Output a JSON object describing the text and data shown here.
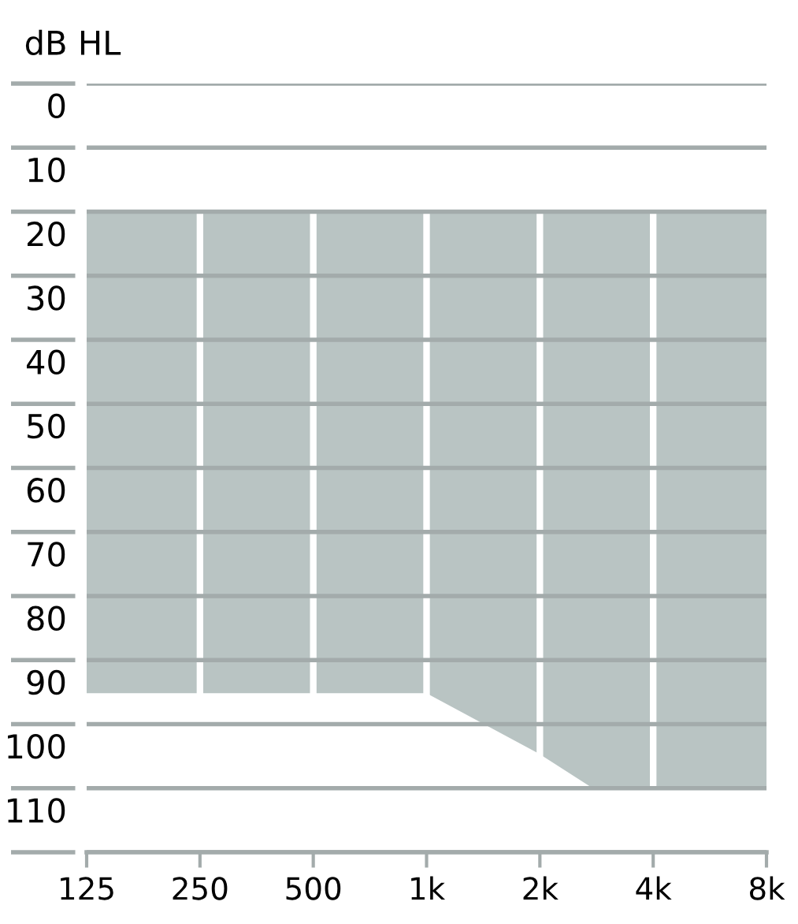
{
  "chart_data": {
    "type": "line",
    "ylabel": "dB HL",
    "series": [
      {
        "color": "#b9c4c3",
        "x": [
          125,
          250,
          500,
          1000,
          2000,
          2800,
          4000,
          8000
        ],
        "values": [
          95,
          95,
          95,
          95,
          104.5,
          110,
          110,
          110
        ],
        "lower": [
          20,
          20,
          20,
          20,
          20,
          20,
          20,
          20
        ],
        "upper": [
          95,
          95,
          95,
          95,
          104.5,
          110,
          110,
          110
        ]
      }
    ],
    "log": "x",
    "xlim": [
      125,
      8000
    ],
    "xticks": [
      125,
      250,
      500,
      {
        "value": 1000,
        "label": "1k"
      },
      {
        "value": 2000,
        "label": "2k"
      },
      {
        "value": 4000,
        "label": "4k"
      },
      {
        "value": 8000,
        "label": "8k"
      }
    ],
    "ylim": [
      120,
      0
    ],
    "yticks": [
      0,
      10,
      20,
      30,
      40,
      50,
      60,
      70,
      80,
      90,
      100,
      110,
      {
        "value": 120,
        "label": null
      }
    ],
    "grid": true
  }
}
